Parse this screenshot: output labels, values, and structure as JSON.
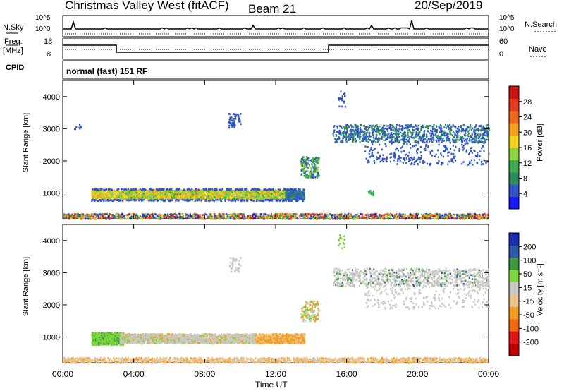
{
  "header": {
    "station": "Christmas Valley West (fitACF)",
    "beam": "Beam 21",
    "date": "20/Sep/2019"
  },
  "top_panels": {
    "nsky_label": "N.Sky",
    "nsearch_label": "N.Search",
    "power_hi": "10^5",
    "power_lo": "10^0",
    "freq_label": "Freq.",
    "freq_unit": "[MHz]",
    "freq_hi": "18",
    "freq_lo": "8",
    "nave_label": "Nave",
    "nave_hi": "60",
    "nave_lo": "0",
    "cpid_label": "CPID",
    "cpid_value": "normal (fast) 151 RF"
  },
  "colors": {
    "power_scale": [
      "#1a1aff",
      "#2f55c8",
      "#2f8a5a",
      "#3fa84f",
      "#8fd23f",
      "#f2d21c",
      "#f3a020",
      "#ee6a1e",
      "#e23a1c",
      "#cc1616"
    ],
    "velocity_scale": [
      "#1a2fb0",
      "#2f5aa8",
      "#3f9a3f",
      "#7ad63a",
      "#c9c9c3",
      "#ecc28a",
      "#f39d20",
      "#f36a14",
      "#e21818",
      "#c00000"
    ],
    "gray_scatter": "#c9c9c3"
  },
  "chart_data": [
    {
      "type": "heatmap",
      "name": "power",
      "ylabel": "Slant Range [km]",
      "xlabel": "",
      "colorbar_label": "Power [dB]",
      "colorbar_ticks": [
        "4",
        "8",
        "12",
        "16",
        "20",
        "24",
        "28"
      ],
      "yticks": [
        "1000",
        "2000",
        "3000",
        "4000"
      ],
      "ylim": [
        200,
        4500
      ],
      "xlim": [
        0,
        24
      ],
      "regions": [
        {
          "t0": 1.6,
          "t1": 13.6,
          "r0": 820,
          "r1": 1120,
          "level": "mixed"
        },
        {
          "t0": 13.6,
          "t1": 14.4,
          "r0": 1500,
          "r1": 2200,
          "level": "mid"
        },
        {
          "t0": 9.3,
          "t1": 10.0,
          "r0": 3050,
          "r1": 3500,
          "level": "low"
        },
        {
          "t0": 15.2,
          "t1": 24.0,
          "r0": 2400,
          "r1": 3200,
          "level": "lowmid"
        },
        {
          "t0": 0.0,
          "t1": 24.0,
          "r0": 230,
          "r1": 380,
          "level": "mixed"
        }
      ]
    },
    {
      "type": "heatmap",
      "name": "velocity",
      "ylabel": "Slant Range [km]",
      "xlabel": "Time UT",
      "colorbar_label": "Velocity [m s⁻¹]",
      "colorbar_ticks": [
        "-200",
        "-100",
        "-50",
        "-15",
        "15",
        "50",
        "100",
        "200"
      ],
      "yticks": [
        "1000",
        "2000",
        "3000",
        "4000"
      ],
      "xticks": [
        "00:00",
        "04:00",
        "08:00",
        "12:00",
        "16:00",
        "20:00",
        "00:00"
      ],
      "ylim": [
        200,
        4500
      ],
      "xlim": [
        0,
        24
      ],
      "regions": [
        {
          "t0": 1.6,
          "t1": 3.2,
          "r0": 820,
          "r1": 1120,
          "level": "green"
        },
        {
          "t0": 3.2,
          "t1": 13.6,
          "r0": 820,
          "r1": 1120,
          "level": "gray-orange"
        },
        {
          "t0": 15.2,
          "t1": 24.0,
          "r0": 2400,
          "r1": 3200,
          "level": "gray"
        },
        {
          "t0": 0.0,
          "t1": 24.0,
          "r0": 230,
          "r1": 380,
          "level": "orange"
        }
      ]
    }
  ]
}
